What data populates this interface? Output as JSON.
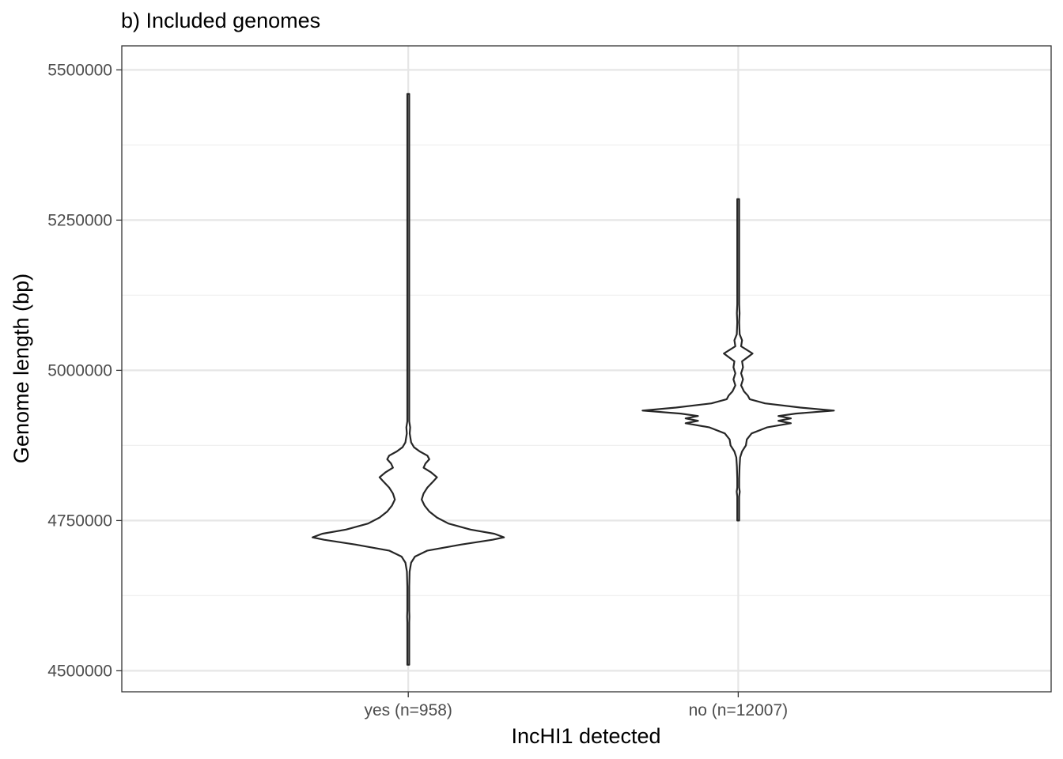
{
  "chart_data": {
    "type": "violin",
    "title": "b) Included genomes",
    "xlabel": "IncHI1 detected",
    "ylabel": "Genome length (bp)",
    "ylim": [
      4465000,
      5540000
    ],
    "yticks": [
      4500000,
      4750000,
      5000000,
      5250000,
      5500000
    ],
    "ytick_labels": [
      "4500000",
      "4750000",
      "5000000",
      "5250000",
      "5500000"
    ],
    "categories": [
      "yes (n=958)",
      "no (n=12007)"
    ],
    "grid": true,
    "legend": "none",
    "colors": {
      "outline": "#262626",
      "fill": "#ffffff",
      "grid": "#e6e6e6",
      "text": "#4d4d4d"
    },
    "series": [
      {
        "category": "yes (n=958)",
        "min": 4510000,
        "max": 5460000,
        "density": [
          [
            4510000,
            0.004
          ],
          [
            4580000,
            0.006
          ],
          [
            4590000,
            0.012
          ],
          [
            4600000,
            0.006
          ],
          [
            4640000,
            0.008
          ],
          [
            4665000,
            0.014
          ],
          [
            4680000,
            0.03
          ],
          [
            4690000,
            0.07
          ],
          [
            4700000,
            0.2
          ],
          [
            4710000,
            0.55
          ],
          [
            4718000,
            0.88
          ],
          [
            4722000,
            1.0
          ],
          [
            4728000,
            0.9
          ],
          [
            4735000,
            0.65
          ],
          [
            4745000,
            0.42
          ],
          [
            4755000,
            0.3
          ],
          [
            4765000,
            0.22
          ],
          [
            4775000,
            0.17
          ],
          [
            4785000,
            0.14
          ],
          [
            4795000,
            0.16
          ],
          [
            4805000,
            0.2
          ],
          [
            4815000,
            0.26
          ],
          [
            4822000,
            0.3
          ],
          [
            4830000,
            0.24
          ],
          [
            4838000,
            0.16
          ],
          [
            4845000,
            0.18
          ],
          [
            4852000,
            0.22
          ],
          [
            4858000,
            0.2
          ],
          [
            4865000,
            0.12
          ],
          [
            4872000,
            0.06
          ],
          [
            4880000,
            0.03
          ],
          [
            4895000,
            0.015
          ],
          [
            4905000,
            0.02
          ],
          [
            4915000,
            0.01
          ],
          [
            4940000,
            0.006
          ],
          [
            5000000,
            0.005
          ],
          [
            5100000,
            0.004
          ],
          [
            5300000,
            0.004
          ],
          [
            5460000,
            0.004
          ]
        ]
      },
      {
        "category": "no (n=12007)",
        "min": 4750000,
        "max": 5285000,
        "density": [
          [
            4750000,
            0.004
          ],
          [
            4770000,
            0.006
          ],
          [
            4790000,
            0.008
          ],
          [
            4798000,
            0.016
          ],
          [
            4805000,
            0.008
          ],
          [
            4820000,
            0.01
          ],
          [
            4840000,
            0.014
          ],
          [
            4855000,
            0.02
          ],
          [
            4865000,
            0.04
          ],
          [
            4875000,
            0.08
          ],
          [
            4885000,
            0.09
          ],
          [
            4895000,
            0.14
          ],
          [
            4905000,
            0.3
          ],
          [
            4912000,
            0.55
          ],
          [
            4916000,
            0.42
          ],
          [
            4920000,
            0.55
          ],
          [
            4924000,
            0.42
          ],
          [
            4928000,
            0.6
          ],
          [
            4933000,
            1.0
          ],
          [
            4938000,
            0.65
          ],
          [
            4945000,
            0.28
          ],
          [
            4952000,
            0.12
          ],
          [
            4958000,
            0.1
          ],
          [
            4965000,
            0.06
          ],
          [
            4975000,
            0.03
          ],
          [
            4985000,
            0.05
          ],
          [
            4995000,
            0.03
          ],
          [
            5005000,
            0.05
          ],
          [
            5015000,
            0.04
          ],
          [
            5022000,
            0.1
          ],
          [
            5028000,
            0.15
          ],
          [
            5034000,
            0.09
          ],
          [
            5040000,
            0.03
          ],
          [
            5050000,
            0.04
          ],
          [
            5060000,
            0.015
          ],
          [
            5080000,
            0.01
          ],
          [
            5095000,
            0.014
          ],
          [
            5110000,
            0.006
          ],
          [
            5135000,
            0.01
          ],
          [
            5160000,
            0.004
          ],
          [
            5200000,
            0.004
          ],
          [
            5285000,
            0.004
          ]
        ]
      }
    ]
  }
}
